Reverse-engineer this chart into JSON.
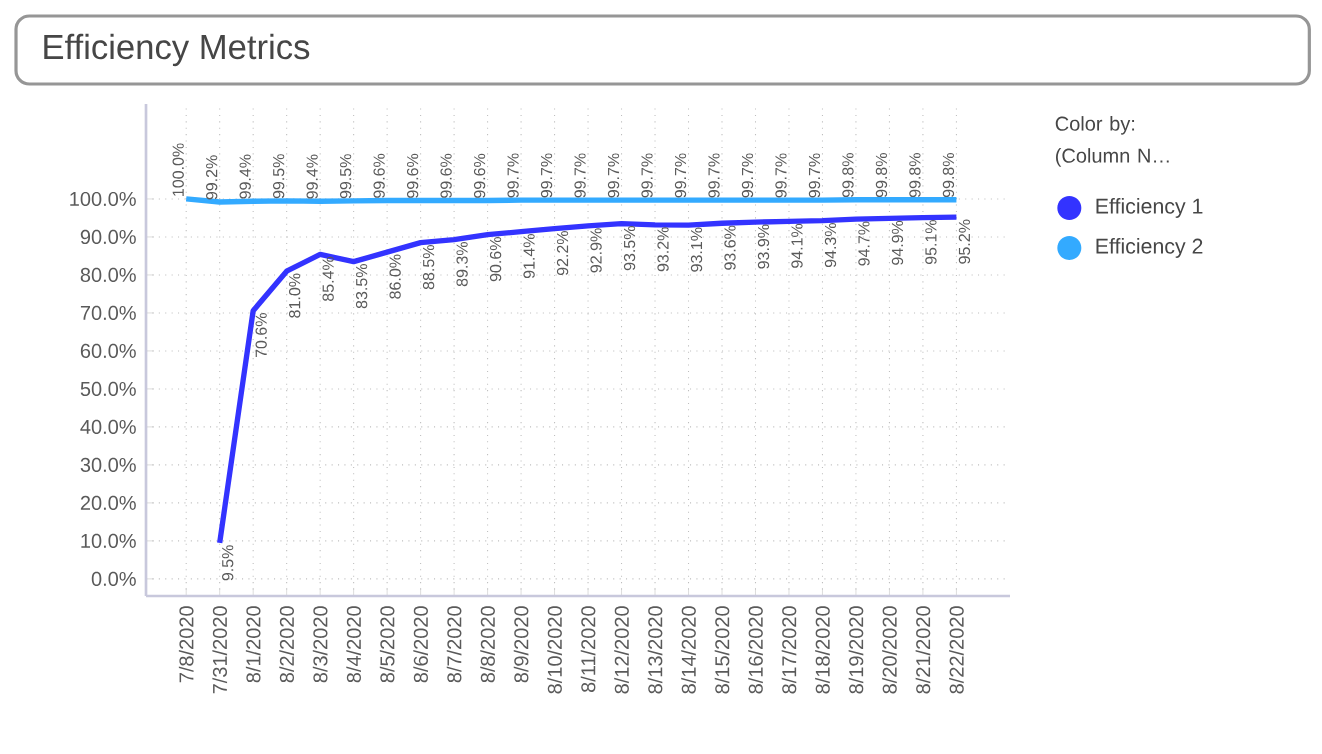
{
  "chart_data": {
    "type": "line",
    "title": "Efficiency Metrics",
    "legend_title": "Color by: (Column N…",
    "categories": [
      "7/8/2020",
      "7/31/2020",
      "8/1/2020",
      "8/2/2020",
      "8/3/2020",
      "8/4/2020",
      "8/5/2020",
      "8/6/2020",
      "8/7/2020",
      "8/8/2020",
      "8/9/2020",
      "8/10/2020",
      "8/11/2020",
      "8/12/2020",
      "8/13/2020",
      "8/14/2020",
      "8/15/2020",
      "8/16/2020",
      "8/17/2020",
      "8/18/2020",
      "8/19/2020",
      "8/20/2020",
      "8/21/2020",
      "8/22/2020"
    ],
    "series": [
      {
        "name": "Efficiency 1",
        "color": "#3333ff",
        "values": [
          null,
          9.5,
          70.6,
          81.0,
          85.4,
          83.5,
          86.0,
          88.5,
          89.3,
          90.6,
          91.4,
          92.2,
          92.9,
          93.5,
          93.2,
          93.1,
          93.6,
          93.9,
          94.1,
          94.3,
          94.7,
          94.9,
          95.1,
          95.2
        ],
        "value_labels": [
          null,
          "9.5%",
          "70.6%",
          "81.0%",
          "85.4%",
          "83.5%",
          "86.0%",
          "88.5%",
          "89.3%",
          "90.6%",
          "91.4%",
          "92.2%",
          "92.9%",
          "93.5%",
          "93.2%",
          "93.1%",
          "93.6%",
          "93.9%",
          "94.1%",
          "94.3%",
          "94.7%",
          "94.9%",
          "95.1%",
          "95.2%"
        ]
      },
      {
        "name": "Efficiency 2",
        "color": "#33aaff",
        "values": [
          100.0,
          99.2,
          99.4,
          99.5,
          99.4,
          99.5,
          99.6,
          99.6,
          99.6,
          99.6,
          99.7,
          99.7,
          99.7,
          99.7,
          99.7,
          99.7,
          99.7,
          99.7,
          99.7,
          99.7,
          99.8,
          99.8,
          99.8,
          99.8
        ],
        "value_labels": [
          "100.0%",
          "99.2%",
          "99.4%",
          "99.5%",
          "99.4%",
          "99.5%",
          "99.6%",
          "99.6%",
          "99.6%",
          "99.6%",
          "99.7%",
          "99.7%",
          "99.7%",
          "99.7%",
          "99.7%",
          "99.7%",
          "99.7%",
          "99.7%",
          "99.7%",
          "99.7%",
          "99.8%",
          "99.8%",
          "99.8%",
          "99.8%"
        ]
      }
    ],
    "ylim": [
      -4.5,
      125
    ],
    "yticks": [
      {
        "value": 0,
        "label": "0.0%"
      },
      {
        "value": 10,
        "label": "10.0%"
      },
      {
        "value": 20,
        "label": "20.0%"
      },
      {
        "value": 30,
        "label": "30.0%"
      },
      {
        "value": 40,
        "label": "40.0%"
      },
      {
        "value": 50,
        "label": "50.0%"
      },
      {
        "value": 60,
        "label": "60.0%"
      },
      {
        "value": 70,
        "label": "70.0%"
      },
      {
        "value": 80,
        "label": "80.0%"
      },
      {
        "value": 90,
        "label": "90.0%"
      },
      {
        "value": 100,
        "label": "100.0%"
      }
    ],
    "grid": true,
    "legend": "right",
    "marker": "none",
    "line_style": "solid"
  }
}
